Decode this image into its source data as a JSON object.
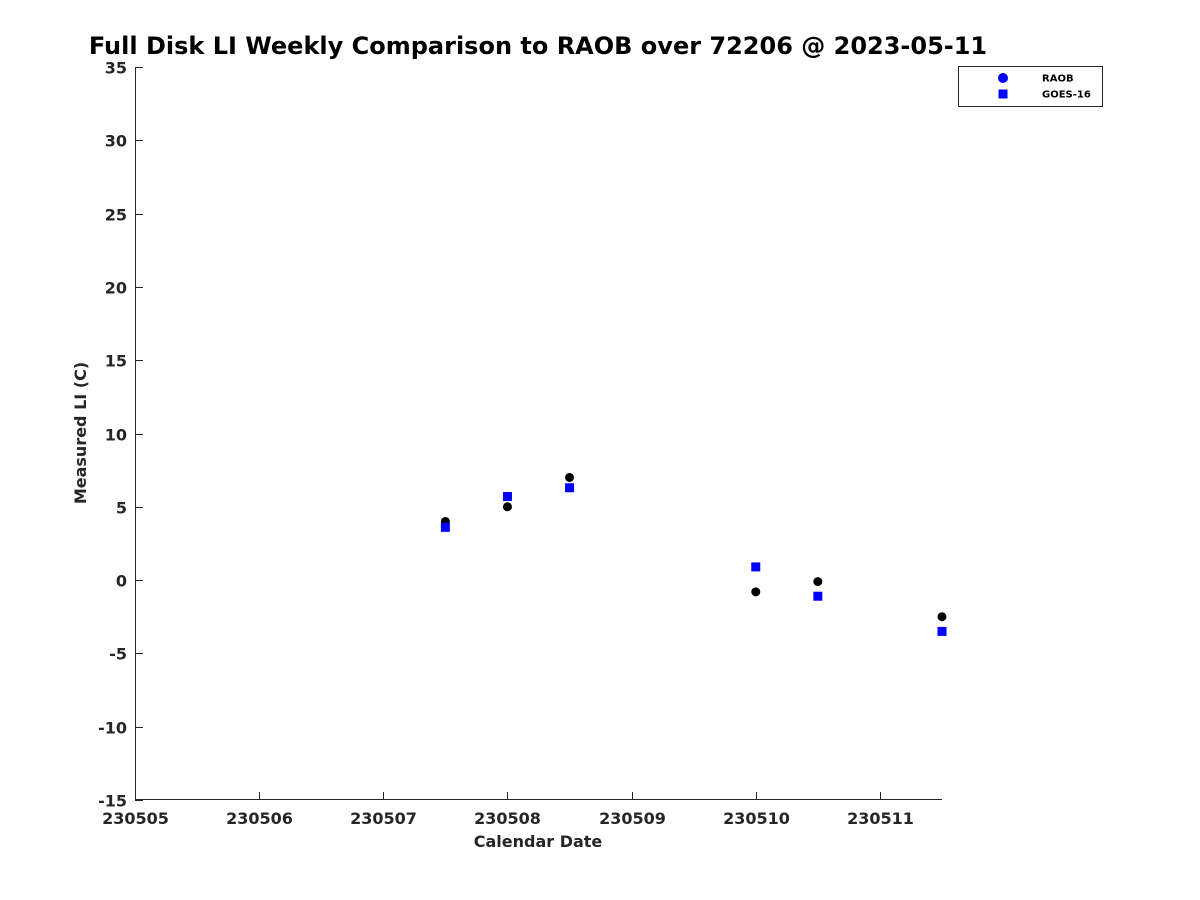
{
  "chart_data": {
    "type": "scatter",
    "title": "Full Disk LI Weekly Comparison to RAOB over 72206 @ 2023-05-11",
    "xlabel": "Calendar Date",
    "ylabel": "Measured LI (C)",
    "xlim": [
      230505,
      230511.5
    ],
    "ylim": [
      -15,
      35
    ],
    "xticks": [
      230505,
      230506,
      230507,
      230508,
      230509,
      230510,
      230511
    ],
    "xtick_labels": [
      "230505",
      "230506",
      "230507",
      "230508",
      "230509",
      "230510",
      "230511"
    ],
    "yticks": [
      -15,
      -10,
      -5,
      0,
      5,
      10,
      15,
      20,
      25,
      30,
      35
    ],
    "ytick_labels": [
      "-15",
      "-10",
      "-5",
      "0",
      "5",
      "10",
      "15",
      "20",
      "25",
      "30",
      "35"
    ],
    "grid": false,
    "legend_position": "top-right",
    "series": [
      {
        "name": "RAOB",
        "marker": "circle",
        "color": "#000000",
        "legend_color": "#0000ff",
        "points": [
          [
            230507.5,
            4.0
          ],
          [
            230508.0,
            5.0
          ],
          [
            230508.5,
            7.0
          ],
          [
            230510.0,
            -0.8
          ],
          [
            230510.5,
            -0.1
          ],
          [
            230511.5,
            -2.5
          ]
        ]
      },
      {
        "name": "GOES-16",
        "marker": "square",
        "color": "#0000ff",
        "legend_color": "#0000ff",
        "points": [
          [
            230507.5,
            3.6
          ],
          [
            230508.0,
            5.7
          ],
          [
            230508.5,
            6.3
          ],
          [
            230510.0,
            0.9
          ],
          [
            230510.5,
            -1.1
          ],
          [
            230511.5,
            -3.5
          ]
        ]
      }
    ]
  }
}
